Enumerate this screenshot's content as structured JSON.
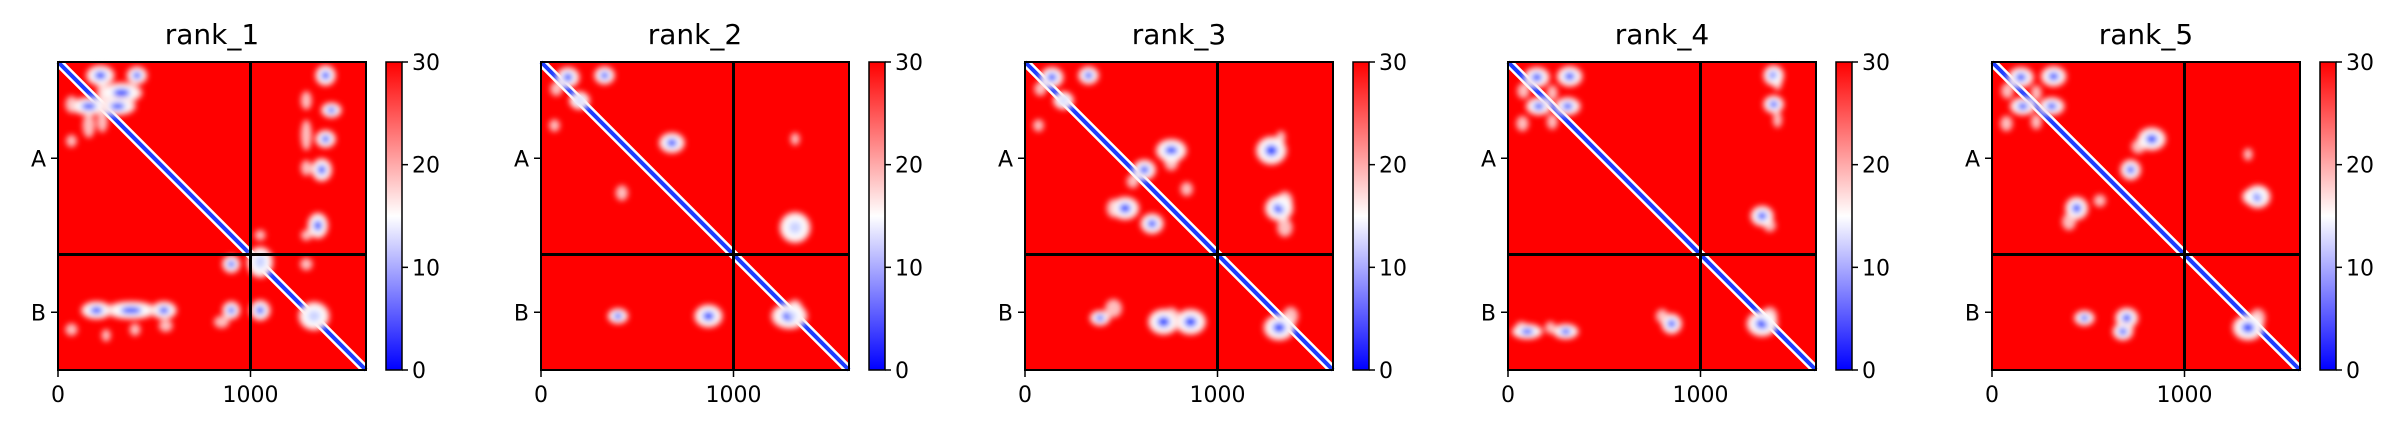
{
  "chart_data": [
    {
      "type": "heatmap",
      "title": "rank_1",
      "chains": [
        "A",
        "B"
      ],
      "chain_boundary": 1000,
      "x_ticks": [
        0,
        1000
      ],
      "xlim": [
        0,
        1600
      ],
      "ylim": [
        0,
        1600
      ],
      "colorbar": {
        "ticks": [
          0,
          10,
          20,
          30
        ],
        "range": [
          0,
          30
        ],
        "colormap": "bwr"
      },
      "blobs": [
        [
          220,
          70,
          55,
          40
        ],
        [
          410,
          70,
          40,
          35
        ],
        [
          330,
          160,
          80,
          40
        ],
        [
          310,
          230,
          70,
          35
        ],
        [
          160,
          230,
          70,
          35
        ],
        [
          1390,
          70,
          40,
          40
        ],
        [
          1420,
          250,
          40,
          30
        ],
        [
          1390,
          400,
          40,
          35
        ],
        [
          1370,
          560,
          40,
          45
        ],
        [
          1350,
          850,
          40,
          50
        ],
        [
          1050,
          1040,
          50,
          60
        ],
        [
          1050,
          1290,
          40,
          40
        ],
        [
          380,
          1290,
          100,
          35
        ],
        [
          200,
          1290,
          60,
          35
        ],
        [
          550,
          1290,
          50,
          35
        ],
        [
          900,
          1050,
          35,
          35
        ],
        [
          900,
          1290,
          35,
          35
        ],
        [
          1330,
          1320,
          60,
          55
        ]
      ]
    },
    {
      "type": "heatmap",
      "title": "rank_2",
      "chains": [
        "A",
        "B"
      ],
      "chain_boundary": 1000,
      "x_ticks": [
        0,
        1000
      ],
      "xlim": [
        0,
        1600
      ],
      "ylim": [
        0,
        1600
      ],
      "colorbar": {
        "ticks": [
          0,
          10,
          20,
          30
        ],
        "range": [
          0,
          30
        ],
        "colormap": "bwr"
      },
      "blobs": [
        [
          140,
          80,
          45,
          40
        ],
        [
          330,
          70,
          40,
          35
        ],
        [
          200,
          200,
          40,
          35
        ],
        [
          1320,
          860,
          60,
          60
        ],
        [
          680,
          420,
          50,
          40
        ],
        [
          870,
          1320,
          55,
          45
        ],
        [
          1290,
          1320,
          70,
          50
        ],
        [
          400,
          1320,
          40,
          30
        ]
      ]
    },
    {
      "type": "heatmap",
      "title": "rank_3",
      "chains": [
        "A",
        "B"
      ],
      "chain_boundary": 1000,
      "x_ticks": [
        0,
        1000
      ],
      "xlim": [
        0,
        1600
      ],
      "ylim": [
        0,
        1600
      ],
      "colorbar": {
        "ticks": [
          0,
          10,
          20,
          30
        ],
        "range": [
          0,
          30
        ],
        "colormap": "bwr"
      },
      "blobs": [
        [
          140,
          80,
          45,
          40
        ],
        [
          330,
          70,
          40,
          35
        ],
        [
          200,
          200,
          40,
          35
        ],
        [
          760,
          460,
          60,
          45
        ],
        [
          620,
          560,
          45,
          40
        ],
        [
          1280,
          460,
          60,
          55
        ],
        [
          1320,
          760,
          55,
          50
        ],
        [
          520,
          760,
          55,
          45
        ],
        [
          660,
          840,
          45,
          40
        ],
        [
          720,
          1350,
          60,
          50
        ],
        [
          860,
          1350,
          60,
          50
        ],
        [
          1320,
          1380,
          60,
          50
        ],
        [
          390,
          1330,
          40,
          30
        ]
      ]
    },
    {
      "type": "heatmap",
      "title": "rank_4",
      "chains": [
        "A",
        "B"
      ],
      "chain_boundary": 1000,
      "x_ticks": [
        0,
        1000
      ],
      "xlim": [
        0,
        1600
      ],
      "ylim": [
        0,
        1600
      ],
      "colorbar": {
        "ticks": [
          0,
          10,
          20,
          30
        ],
        "range": [
          0,
          30
        ],
        "colormap": "bwr"
      },
      "blobs": [
        [
          150,
          80,
          50,
          40
        ],
        [
          320,
          75,
          50,
          40
        ],
        [
          160,
          230,
          50,
          35
        ],
        [
          310,
          230,
          50,
          35
        ],
        [
          1380,
          70,
          40,
          40
        ],
        [
          1380,
          220,
          40,
          35
        ],
        [
          1320,
          800,
          45,
          40
        ],
        [
          100,
          1400,
          60,
          30
        ],
        [
          300,
          1400,
          50,
          30
        ],
        [
          850,
          1360,
          40,
          40
        ],
        [
          1320,
          1360,
          60,
          50
        ]
      ]
    },
    {
      "type": "heatmap",
      "title": "rank_5",
      "chains": [
        "A",
        "B"
      ],
      "chain_boundary": 1000,
      "x_ticks": [
        0,
        1000
      ],
      "xlim": [
        0,
        1600
      ],
      "ylim": [
        0,
        1600
      ],
      "colorbar": {
        "ticks": [
          0,
          10,
          20,
          30
        ],
        "range": [
          0,
          30
        ],
        "colormap": "bwr"
      },
      "blobs": [
        [
          150,
          80,
          50,
          40
        ],
        [
          320,
          75,
          50,
          40
        ],
        [
          160,
          230,
          50,
          35
        ],
        [
          310,
          230,
          50,
          35
        ],
        [
          830,
          400,
          55,
          45
        ],
        [
          1380,
          700,
          50,
          45
        ],
        [
          440,
          760,
          45,
          45
        ],
        [
          720,
          560,
          40,
          40
        ],
        [
          700,
          1330,
          45,
          40
        ],
        [
          680,
          1400,
          40,
          35
        ],
        [
          1330,
          1380,
          60,
          50
        ],
        [
          480,
          1330,
          40,
          30
        ]
      ]
    }
  ]
}
